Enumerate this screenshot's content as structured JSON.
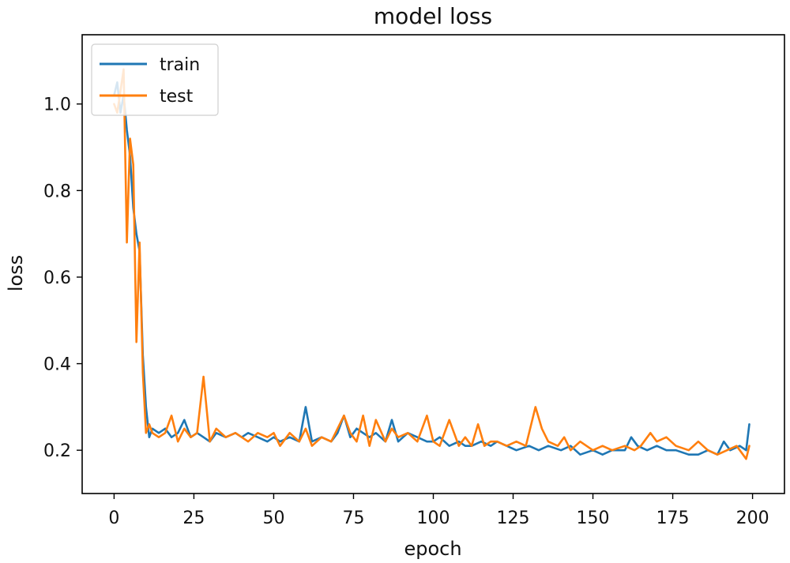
{
  "chart_data": {
    "type": "line",
    "title": "model loss",
    "xlabel": "epoch",
    "ylabel": "loss",
    "xlim": [
      -10,
      210
    ],
    "ylim": [
      0.1,
      1.16
    ],
    "xticks": [
      0,
      25,
      50,
      75,
      100,
      125,
      150,
      175,
      200
    ],
    "yticks": [
      0.2,
      0.4,
      0.6,
      0.8,
      1.0
    ],
    "ytick_labels": [
      "0.2",
      "0.4",
      "0.6",
      "0.8",
      "1.0"
    ],
    "grid": false,
    "legend": {
      "position": "top-left"
    },
    "series": [
      {
        "name": "train",
        "color": "#1f77b4",
        "x": [
          0,
          1,
          2,
          3,
          4,
          5,
          6,
          7,
          8,
          9,
          10,
          11,
          12,
          14,
          16,
          18,
          20,
          22,
          24,
          26,
          28,
          30,
          32,
          35,
          38,
          40,
          42,
          45,
          48,
          50,
          52,
          55,
          58,
          60,
          62,
          65,
          68,
          70,
          72,
          74,
          76,
          78,
          80,
          82,
          85,
          87,
          89,
          92,
          95,
          98,
          100,
          102,
          105,
          108,
          110,
          112,
          115,
          118,
          120,
          123,
          126,
          130,
          133,
          136,
          140,
          143,
          146,
          150,
          153,
          156,
          160,
          162,
          164,
          167,
          170,
          173,
          176,
          180,
          183,
          186,
          189,
          191,
          193,
          196,
          198,
          199
        ],
        "y": [
          1.02,
          1.05,
          0.98,
          1.02,
          0.94,
          0.88,
          0.76,
          0.7,
          0.66,
          0.42,
          0.3,
          0.23,
          0.25,
          0.24,
          0.25,
          0.23,
          0.24,
          0.27,
          0.23,
          0.24,
          0.23,
          0.22,
          0.24,
          0.23,
          0.24,
          0.23,
          0.24,
          0.23,
          0.22,
          0.23,
          0.22,
          0.23,
          0.22,
          0.3,
          0.22,
          0.23,
          0.22,
          0.24,
          0.28,
          0.23,
          0.25,
          0.24,
          0.23,
          0.24,
          0.22,
          0.27,
          0.22,
          0.24,
          0.23,
          0.22,
          0.22,
          0.23,
          0.21,
          0.22,
          0.21,
          0.21,
          0.22,
          0.21,
          0.22,
          0.21,
          0.2,
          0.21,
          0.2,
          0.21,
          0.2,
          0.21,
          0.19,
          0.2,
          0.19,
          0.2,
          0.2,
          0.23,
          0.21,
          0.2,
          0.21,
          0.2,
          0.2,
          0.19,
          0.19,
          0.2,
          0.19,
          0.22,
          0.2,
          0.21,
          0.2,
          0.26
        ]
      },
      {
        "name": "test",
        "color": "#ff7f0e",
        "x": [
          0,
          1,
          2,
          3,
          4,
          5,
          6,
          7,
          8,
          9,
          10,
          11,
          12,
          14,
          16,
          18,
          20,
          22,
          24,
          26,
          28,
          30,
          32,
          35,
          38,
          40,
          42,
          45,
          48,
          50,
          52,
          55,
          58,
          60,
          62,
          65,
          68,
          70,
          72,
          74,
          76,
          78,
          80,
          82,
          85,
          87,
          89,
          92,
          95,
          98,
          100,
          102,
          105,
          108,
          110,
          112,
          114,
          116,
          118,
          120,
          123,
          126,
          129,
          132,
          134,
          136,
          139,
          141,
          143,
          146,
          150,
          153,
          156,
          160,
          163,
          165,
          168,
          170,
          173,
          176,
          180,
          183,
          186,
          189,
          192,
          195,
          198,
          199
        ],
        "y": [
          1.0,
          0.98,
          1.03,
          1.08,
          0.68,
          0.92,
          0.86,
          0.45,
          0.68,
          0.38,
          0.24,
          0.26,
          0.24,
          0.23,
          0.24,
          0.28,
          0.22,
          0.25,
          0.23,
          0.24,
          0.37,
          0.22,
          0.25,
          0.23,
          0.24,
          0.23,
          0.22,
          0.24,
          0.23,
          0.24,
          0.21,
          0.24,
          0.22,
          0.25,
          0.21,
          0.23,
          0.22,
          0.25,
          0.28,
          0.24,
          0.22,
          0.28,
          0.21,
          0.27,
          0.22,
          0.25,
          0.23,
          0.24,
          0.22,
          0.28,
          0.22,
          0.21,
          0.27,
          0.21,
          0.23,
          0.21,
          0.26,
          0.21,
          0.22,
          0.22,
          0.21,
          0.22,
          0.21,
          0.3,
          0.25,
          0.22,
          0.21,
          0.23,
          0.2,
          0.22,
          0.2,
          0.21,
          0.2,
          0.21,
          0.2,
          0.21,
          0.24,
          0.22,
          0.23,
          0.21,
          0.2,
          0.22,
          0.2,
          0.19,
          0.2,
          0.21,
          0.18,
          0.21
        ]
      }
    ]
  }
}
